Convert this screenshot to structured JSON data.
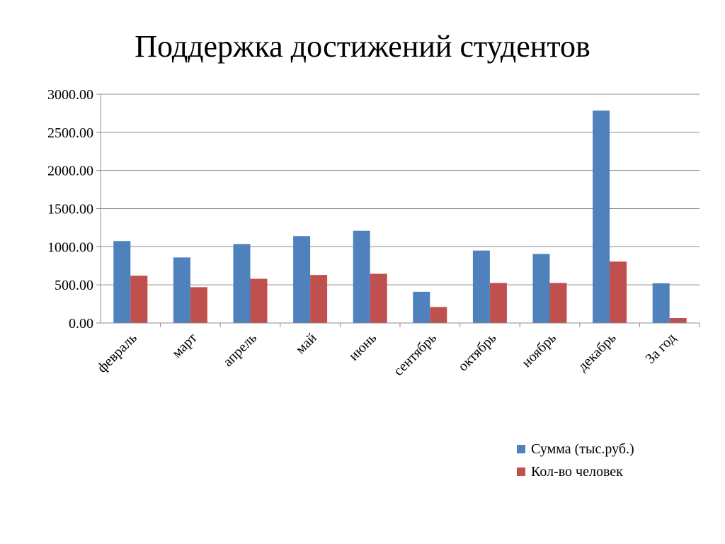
{
  "chart_data": {
    "type": "bar",
    "title": "Поддержка достижений студентов",
    "categories": [
      "февраль",
      "март",
      "апрель",
      "май",
      "июнь",
      "сентябрь",
      "октябрь",
      "ноябрь",
      "декабрь",
      "За год"
    ],
    "series": [
      {
        "name": "Сумма (тыс.руб.)",
        "color": "#4f81bd",
        "values": [
          1075,
          860,
          1035,
          1140,
          1210,
          410,
          950,
          905,
          2785,
          520
        ]
      },
      {
        "name": "Кол-во человек",
        "color": "#c0504d",
        "values": [
          620,
          470,
          580,
          630,
          645,
          210,
          525,
          525,
          805,
          65
        ]
      }
    ],
    "yticks": [
      "0.00",
      "500.00",
      "1000.00",
      "1500.00",
      "2000.00",
      "2500.00",
      "3000.00"
    ],
    "ylim": [
      0,
      3000
    ],
    "grid": true,
    "legend_position": "bottom-right",
    "xlabel": "",
    "ylabel": ""
  }
}
